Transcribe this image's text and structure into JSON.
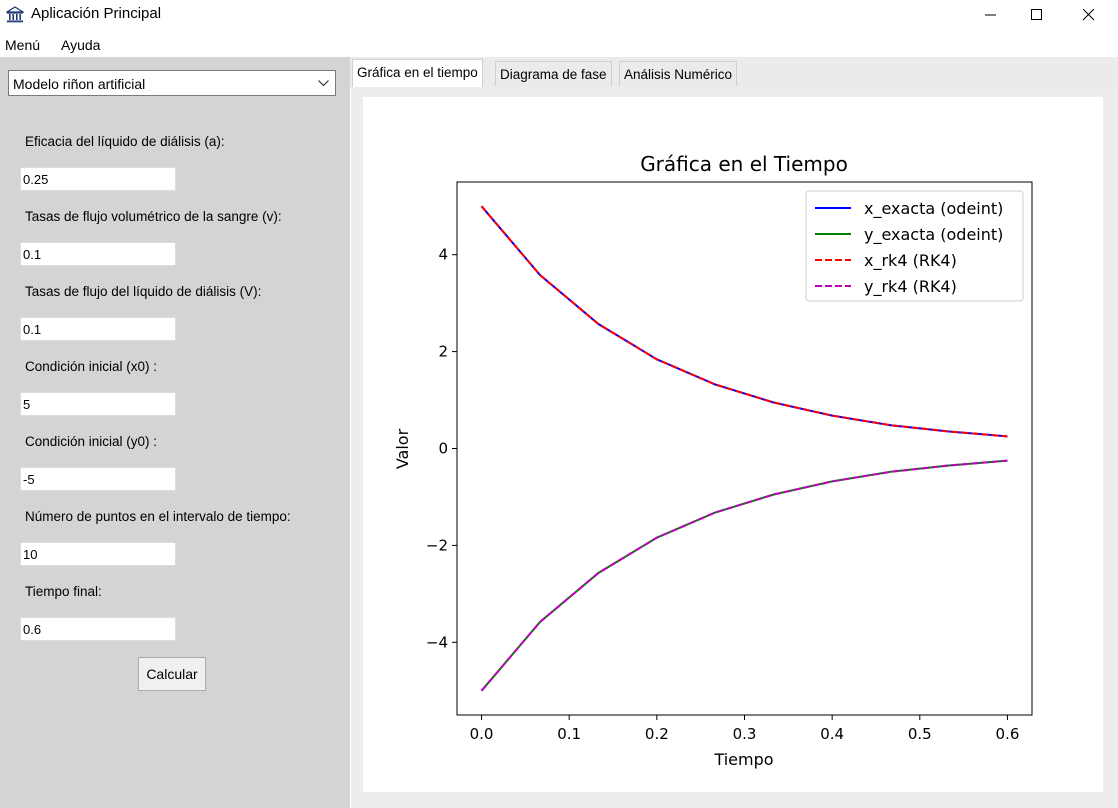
{
  "window": {
    "title": "Aplicación Principal",
    "icons": {
      "app": "bank-icon",
      "minimize": "minimize-icon",
      "maximize": "maximize-icon",
      "close": "close-icon"
    }
  },
  "menu": {
    "items": [
      "Menú",
      "Ayuda"
    ]
  },
  "model_select": {
    "selected": "Modelo riñon artificial",
    "icon": "chevron-down-icon"
  },
  "form": {
    "fields": [
      {
        "label": "Eficacia del líquido de diálisis (a):",
        "value": "0.25"
      },
      {
        "label": "Tasas de flujo volumétrico de la sangre (v):",
        "value": "0.1"
      },
      {
        "label": "Tasas de flujo del líquido de diálisis (V):",
        "value": "0.1"
      },
      {
        "label": "Condición inicial (x0) :",
        "value": "5"
      },
      {
        "label": "Condición inicial (y0) :",
        "value": "-5"
      },
      {
        "label": "Número de puntos en el intervalo de tiempo:",
        "value": "10"
      },
      {
        "label": "Tiempo final:",
        "value": "0.6"
      }
    ],
    "calculate_label": "Calcular"
  },
  "tabs": [
    {
      "label": "Gráfica en el tiempo",
      "active": true
    },
    {
      "label": "Diagrama de fase",
      "active": false
    },
    {
      "label": "Análisis Numérico",
      "active": false
    }
  ],
  "chart_data": {
    "type": "line",
    "title": "Gráfica en el Tiempo",
    "xlabel": "Tiempo",
    "ylabel": "Valor",
    "xlim": [
      -0.028,
      0.628
    ],
    "ylim": [
      -5.5,
      5.5
    ],
    "xticks": [
      0.0,
      0.1,
      0.2,
      0.3,
      0.4,
      0.5,
      0.6
    ],
    "xtick_labels": [
      "0.0",
      "0.1",
      "0.2",
      "0.3",
      "0.4",
      "0.5",
      "0.6"
    ],
    "yticks": [
      -4,
      -2,
      0,
      2,
      4
    ],
    "ytick_labels": [
      "−4",
      "−2",
      "0",
      "2",
      "4"
    ],
    "grid": false,
    "legend_position": "top-right",
    "x": [
      0.0,
      0.0667,
      0.1333,
      0.2,
      0.2667,
      0.3333,
      0.4,
      0.4667,
      0.5333,
      0.6
    ],
    "series": [
      {
        "name": "x_exacta (odeint)",
        "color": "#0000ff",
        "style": "solid",
        "values": [
          5.0,
          3.58,
          2.57,
          1.84,
          1.32,
          0.95,
          0.68,
          0.48,
          0.35,
          0.25
        ]
      },
      {
        "name": "y_exacta (odeint)",
        "color": "#008000",
        "style": "solid",
        "values": [
          -5.0,
          -3.58,
          -2.57,
          -1.84,
          -1.32,
          -0.95,
          -0.68,
          -0.48,
          -0.35,
          -0.25
        ]
      },
      {
        "name": "x_rk4 (RK4)",
        "color": "#ff0000",
        "style": "dashed",
        "values": [
          5.0,
          3.58,
          2.57,
          1.84,
          1.32,
          0.95,
          0.68,
          0.48,
          0.35,
          0.25
        ]
      },
      {
        "name": "y_rk4 (RK4)",
        "color": "#bf00bf",
        "style": "dashed",
        "values": [
          -5.0,
          -3.58,
          -2.57,
          -1.84,
          -1.32,
          -0.95,
          -0.68,
          -0.48,
          -0.35,
          -0.25
        ]
      }
    ]
  }
}
